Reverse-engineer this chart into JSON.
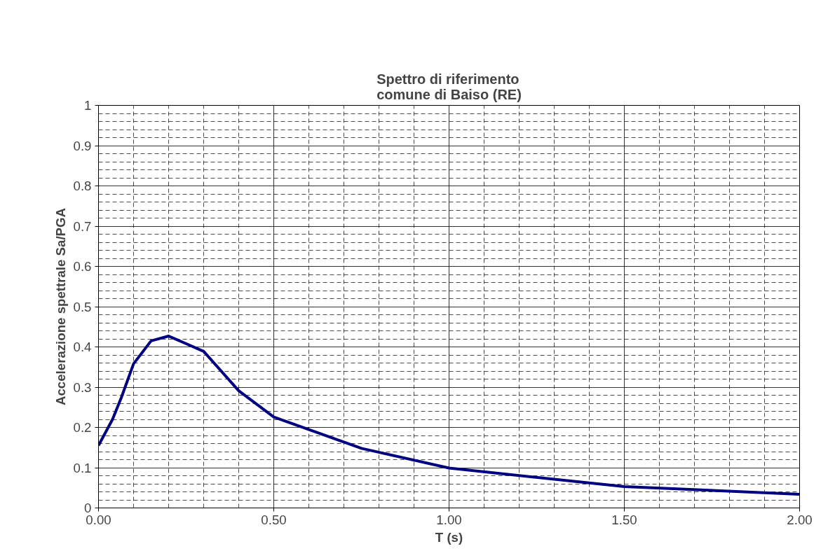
{
  "chart_data": {
    "type": "line",
    "title": "Spettro di riferimento\ncomune di Baiso (RE)",
    "xlabel": "T (s)",
    "ylabel": "Accelerazione spettrale Sa/PGA",
    "x": [
      0,
      0.04,
      0.065,
      0.1,
      0.15,
      0.2,
      0.3,
      0.4,
      0.5,
      0.75,
      1.0,
      1.5,
      2.0
    ],
    "series": [
      {
        "color": "#000080",
        "values": [
          0.155,
          0.22,
          0.274,
          0.358,
          0.415,
          0.427,
          0.389,
          0.291,
          0.226,
          0.148,
          0.099,
          0.053,
          0.034
        ]
      }
    ],
    "xlim": [
      0,
      2
    ],
    "ylim": [
      0,
      1
    ],
    "xticks": [
      {
        "value": 0,
        "label": "0.00"
      },
      {
        "value": 0.5,
        "label": "0.50"
      },
      {
        "value": 1,
        "label": "1.00"
      },
      {
        "value": 1.5,
        "label": "1.50"
      },
      {
        "value": 2,
        "label": "2.00"
      }
    ],
    "yticks": [
      0,
      0.1,
      0.2,
      0.3,
      0.4,
      0.5,
      0.6,
      0.7,
      0.8,
      0.9,
      1
    ],
    "grid": true,
    "marker": "none",
    "line_style": "solid"
  }
}
